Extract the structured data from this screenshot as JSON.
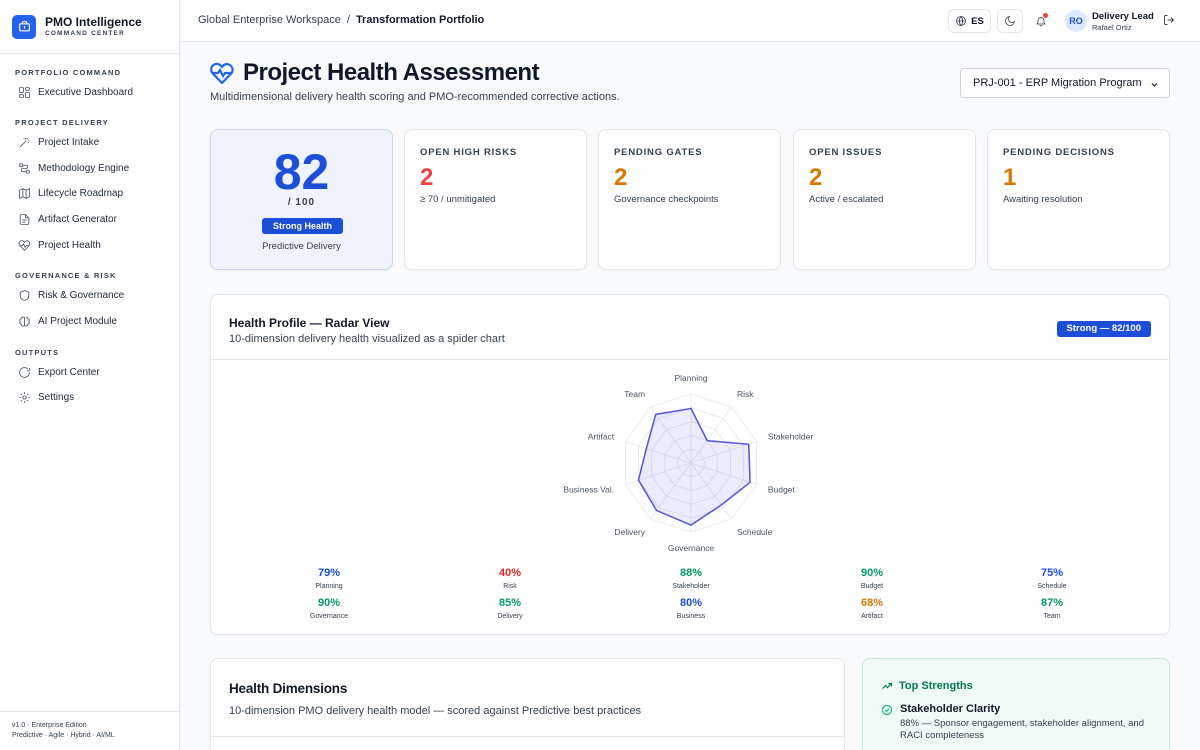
{
  "brand": {
    "name": "PMO Intelligence",
    "subtitle": "COMMAND CENTER"
  },
  "sidebar": {
    "sections": [
      {
        "title": "PORTFOLIO COMMAND",
        "items": [
          {
            "label": "Executive Dashboard",
            "icon": "grid-icon"
          }
        ]
      },
      {
        "title": "PROJECT DELIVERY",
        "items": [
          {
            "label": "Project Intake",
            "icon": "wand-icon"
          },
          {
            "label": "Methodology Engine",
            "icon": "workflow-icon"
          },
          {
            "label": "Lifecycle Roadmap",
            "icon": "map-icon"
          },
          {
            "label": "Artifact Generator",
            "icon": "document-icon"
          },
          {
            "label": "Project Health",
            "icon": "heart-pulse-icon"
          }
        ]
      },
      {
        "title": "GOVERNANCE & RISK",
        "items": [
          {
            "label": "Risk & Governance",
            "icon": "shield-icon"
          },
          {
            "label": "AI Project Module",
            "icon": "brain-icon"
          }
        ]
      },
      {
        "title": "OUTPUTS",
        "items": [
          {
            "label": "Export Center",
            "icon": "export-icon"
          },
          {
            "label": "Settings",
            "icon": "gear-icon"
          }
        ]
      }
    ],
    "footer": {
      "version": "v1.0 · Enterprise Edition",
      "modes": "Predictive · Agile · Hybrid · AI/ML"
    }
  },
  "topbar": {
    "breadcrumb": {
      "workspace": "Global Enterprise Workspace",
      "separator": "/",
      "current": "Transformation Portfolio"
    },
    "language": "ES",
    "user": {
      "initials": "RO",
      "role": "Delivery Lead",
      "name": "Rafael Ortiz"
    }
  },
  "page": {
    "title": "Project Health Assessment",
    "subtitle": "Multidimensional delivery health scoring and PMO-recommended corrective actions.",
    "project_select": "PRJ-001 - ERP Migration Program"
  },
  "score": {
    "value": "82",
    "of": "/ 100",
    "badge": "Strong Health",
    "methodology": "Predictive Delivery"
  },
  "kpis": [
    {
      "label": "OPEN HIGH RISKS",
      "value": "2",
      "desc": "≥ 70 / unmitigated",
      "color": "#ef4444"
    },
    {
      "label": "PENDING GATES",
      "value": "2",
      "desc": "Governance checkpoints",
      "color": "#d97706"
    },
    {
      "label": "OPEN ISSUES",
      "value": "2",
      "desc": "Active / escalated",
      "color": "#d97706"
    },
    {
      "label": "PENDING DECISIONS",
      "value": "1",
      "desc": "Awaiting resolution",
      "color": "#d97706"
    }
  ],
  "radar": {
    "title": "Health Profile — Radar View",
    "subtitle": "10-dimension delivery health visualized as a spider chart",
    "badge": "Strong — 82/100"
  },
  "chart_data": {
    "type": "radar",
    "categories": [
      "Planning",
      "Risk",
      "Stakeholder",
      "Budget",
      "Schedule",
      "Governance",
      "Delivery",
      "Business Val.",
      "Artifact",
      "Team"
    ],
    "values": [
      79,
      40,
      88,
      90,
      75,
      90,
      85,
      80,
      68,
      87
    ],
    "rlim": [
      0,
      100
    ],
    "colors": {
      "fill": "#6366f1",
      "stroke": "#5b5bd6",
      "grid": "#e5e7eb"
    }
  },
  "dimensions": [
    {
      "value": "79%",
      "name": "Planning",
      "color": "#1d4ed8"
    },
    {
      "value": "40%",
      "name": "Risk",
      "color": "#dc2626"
    },
    {
      "value": "88%",
      "name": "Stakeholder",
      "color": "#059669"
    },
    {
      "value": "90%",
      "name": "Budget",
      "color": "#059669"
    },
    {
      "value": "75%",
      "name": "Schedule",
      "color": "#1d4ed8"
    },
    {
      "value": "90%",
      "name": "Governance",
      "color": "#059669"
    },
    {
      "value": "85%",
      "name": "Delivery",
      "color": "#059669"
    },
    {
      "value": "80%",
      "name": "Business",
      "color": "#1d4ed8"
    },
    {
      "value": "68%",
      "name": "Artifact",
      "color": "#d97706"
    },
    {
      "value": "87%",
      "name": "Team",
      "color": "#059669"
    }
  ],
  "health_dimensions": {
    "title": "Health Dimensions",
    "subtitle": "10-dimension PMO delivery health model — scored against Predictive best practices"
  },
  "strengths": {
    "title": "Top Strengths",
    "items": [
      {
        "title": "Stakeholder Clarity",
        "desc": "88% — Sponsor engagement, stakeholder alignment, and RACI completeness"
      }
    ]
  }
}
